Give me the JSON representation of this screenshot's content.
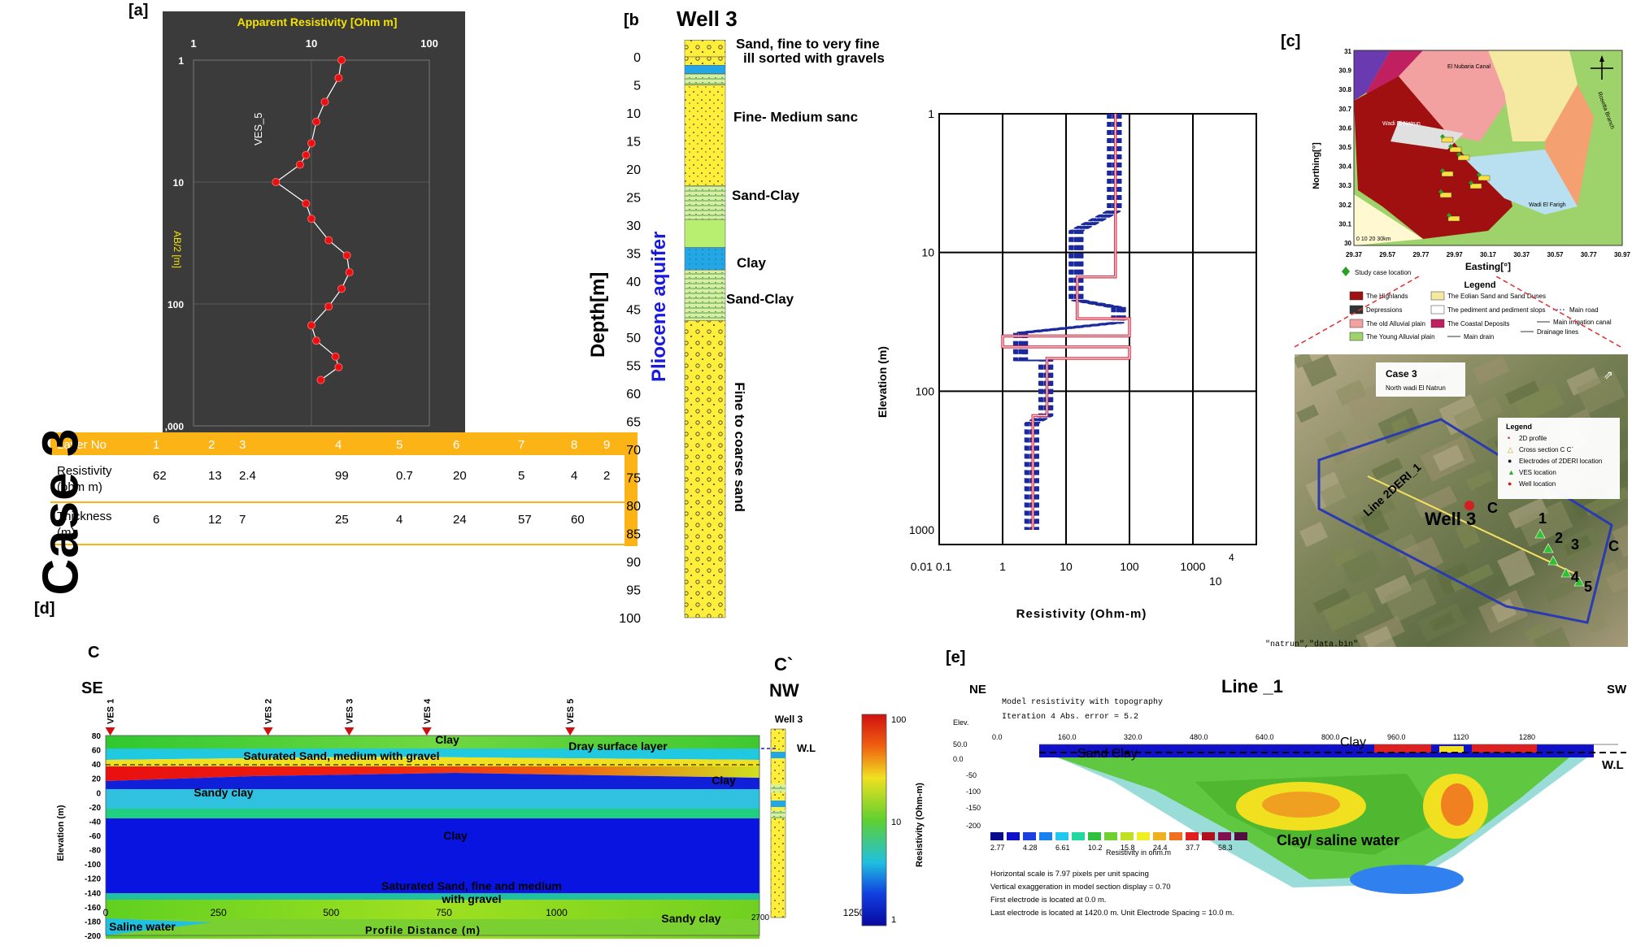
{
  "panel_a": {
    "label": "[a]",
    "title": "Apparent Resistivity [Ohm m]",
    "x_ticks": [
      "1",
      "10",
      "100"
    ],
    "y_ticks": [
      "1",
      "10",
      "100",
      ",000"
    ],
    "ylabel": "AB/2 [m]",
    "curve_label": "VES_5",
    "chart_data": {
      "type": "line",
      "x_scale": "log",
      "y_scale": "log",
      "xlim": [
        1,
        100
      ],
      "ylim": [
        1,
        1000
      ],
      "points": [
        [
          18,
          1
        ],
        [
          17,
          1.4
        ],
        [
          13,
          2.2
        ],
        [
          11,
          3.2
        ],
        [
          10,
          4.8
        ],
        [
          9,
          6.0
        ],
        [
          8,
          7.2
        ],
        [
          5,
          10
        ],
        [
          9,
          15
        ],
        [
          10,
          20
        ],
        [
          14,
          30
        ],
        [
          20,
          40
        ],
        [
          21,
          55
        ],
        [
          18,
          75
        ],
        [
          14,
          105
        ],
        [
          10,
          150
        ],
        [
          11,
          200
        ],
        [
          16,
          270
        ],
        [
          17,
          330
        ],
        [
          12,
          420
        ]
      ]
    }
  },
  "layer_table": {
    "headers": [
      "Layer No",
      "1",
      "2",
      "3",
      "4",
      "5",
      "6",
      "7",
      "8",
      "9"
    ],
    "resistivity_label": "Resistivity (ohm m)",
    "resistivity": [
      "62",
      "13",
      "2.4",
      "99",
      "0.7",
      "20",
      "5",
      "4",
      "2"
    ],
    "thickness_label": "Thickness (m)",
    "thickness": [
      "6",
      "12",
      "7",
      "25",
      "4",
      "24",
      "57",
      "60"
    ],
    "case_label": "Case 3",
    "colors": {
      "header": "#FBB316",
      "border": "#FBB316"
    }
  },
  "panel_b": {
    "label": "[b",
    "title": "Well 3",
    "ylabel": "Depth[m]",
    "aquifer_label": "Pliocene aquifer",
    "depth_ticks": [
      "0",
      "5",
      "10",
      "15",
      "20",
      "25",
      "30",
      "35",
      "40",
      "45",
      "50",
      "55",
      "60",
      "65",
      "70",
      "75",
      "80",
      "85",
      "90",
      "95",
      "100"
    ],
    "unit_labels": [
      "Sand, fine to very fine",
      "ill sorted with gravels",
      "Fine- Medium sanc",
      "Sand-Clay",
      "Clay",
      "Sand-Clay",
      "Fine to coarse sand"
    ]
  },
  "panel_inv": {
    "ylabel": "Elevation (m)",
    "xlabel": "Resistivity (Ohm-m)",
    "y_ticks": [
      "1",
      "10",
      "100",
      "1000"
    ],
    "x_ticks": [
      "0.01 0.1",
      "1",
      "10",
      "100",
      "1000"
    ],
    "x_extra": [
      "4",
      "10"
    ]
  },
  "panel_c": {
    "label": "[c]",
    "ylabel": "Northing[°]",
    "xlabel": "Easting[°]",
    "x_ticks": [
      "29.37",
      "29.57",
      "29.77",
      "29.97",
      "30.17",
      "30.37",
      "30.57",
      "30.77",
      "30.97"
    ],
    "y_ticks": [
      "31",
      "30.9",
      "30.8",
      "30.7",
      "30.6",
      "30.5",
      "30.4",
      "30.3",
      "30.2",
      "30.1",
      "30"
    ],
    "map_labels": [
      "Wadi El Natrun",
      "Wadi El Farigh",
      "El Nubaria Canal",
      "Rosetta Branch"
    ],
    "scale_text": "0 10 20 30km",
    "study_case_text": "Study case location",
    "legend_title": "Legend",
    "legend_items": [
      "The Highlands",
      "The Eolian Sand and Sand Dunes",
      "Depressions",
      "The pediment and pediment slops",
      "Main road",
      "The old Alluvial plain",
      "The Coastal Deposits",
      "Main irrigation canal",
      "The Young Alluvial plain",
      "Main drain",
      "Drainage lines"
    ],
    "sat_title": "Case 3",
    "sat_subtitle": "North wadi El Natrun",
    "sat_legend_title": "Legend",
    "sat_legend_items": [
      "2D profile",
      "Cross section C C`",
      "Electrodes of 2DERI location",
      "VES location",
      "Well location"
    ],
    "sat_line_label": "Line 2DERI_1",
    "sat_well_label": "Well 3",
    "sat_c_label": "C",
    "sat_c2_label": "C",
    "sat_ves_labels": [
      "5",
      "4",
      "3",
      "2",
      "1"
    ],
    "file_note": "\"natrun\",\"data.bin\""
  },
  "panel_d": {
    "label": "[d]",
    "c_left": "C",
    "c_right": "C`",
    "se": "SE",
    "nw": "NW",
    "well_label": "Well 3",
    "wl_label": "W.L",
    "ves_labels": [
      "VES 1",
      "VES 2",
      "VES 3",
      "VES 4",
      "VES 5"
    ],
    "ylabel": "Elevation (m)",
    "xlabel": "Profile Distance (m)",
    "y_ticks": [
      "80",
      "60",
      "40",
      "20",
      "0",
      "-20",
      "-40",
      "-60",
      "-80",
      "-100",
      "-120",
      "-140",
      "-160",
      "-180",
      "-200"
    ],
    "x_ticks": [
      "0",
      "250",
      "500",
      "750",
      "1000",
      "2700",
      "1250"
    ],
    "colorbar_label": "Resistivity (Ohm-m)",
    "colorbar_ticks": [
      "100",
      "10",
      "1"
    ],
    "zone_labels": [
      "Clay",
      "Dray surface layer",
      "Saturated Sand, medium with gravel",
      "Clay",
      "Sandy clay",
      "Clay",
      "Saturated Sand, fine and medium",
      "with gravel",
      "Sandy clay",
      "Saline water"
    ]
  },
  "panel_e": {
    "label": "[e]",
    "title": "Line _1",
    "ne": "NE",
    "sw": "SW",
    "subtitle1": "Model resistivity with topography",
    "subtitle2": "Iteration 4 Abs. error = 5.2",
    "elev_label": "Elev.",
    "x_ticks": [
      "0.0",
      "160.0",
      "320.0",
      "480.0",
      "640.0",
      "800.0",
      "960.0",
      "1120",
      "1280"
    ],
    "y_ticks": [
      "50.0",
      "0.0",
      "-50",
      "-100",
      "-150",
      "-200"
    ],
    "zone_labels": [
      "Clay",
      "Sand Clay",
      "Clay/ saline water"
    ],
    "wl_label": "W.L",
    "scale_values": [
      "2.77",
      "4.28",
      "6.61",
      "10.2",
      "15.8",
      "24.4",
      "37.7",
      "58.3"
    ],
    "scale_colors": [
      "#0a0a8c",
      "#1010c8",
      "#1a40e0",
      "#1a80f0",
      "#20c8f0",
      "#20d8a0",
      "#30c040",
      "#70d030",
      "#c0e020",
      "#f0f020",
      "#f0b020",
      "#f07020",
      "#e02020",
      "#b01020",
      "#801050",
      "#501040"
    ],
    "scale_caption": "Resistivity in ohm.m",
    "notes": [
      "Horizontal scale is 7.97 pixels per unit spacing",
      "Vertical exaggeration in model section display = 0.70",
      "First electrode is located at 0.0 m.",
      "Last electrode is located at 1420.0 m.   Unit Electrode Spacing = 10.0 m."
    ]
  }
}
